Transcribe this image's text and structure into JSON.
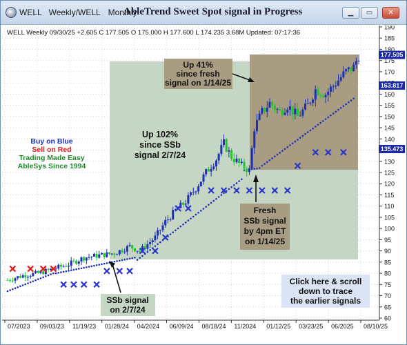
{
  "tabs": [
    "WELL",
    "Weekly/WELL",
    "Monthly"
  ],
  "window_title": "AbleTrend Sweet Spot signal in Progress",
  "buttons": {
    "minimize": "▁",
    "restore": "▭",
    "close": "✕"
  },
  "header_info": "WELL  Weekly 09/30/25 +2.605 C 177.505 O 175.000 H 177.600 L 174.235 3.68M Updated: 07:17:36",
  "legend": {
    "line1": "Buy on Blue",
    "line2": "Sell on Red",
    "line3": "Trading Made Easy",
    "line4": "AbleSys Since 1994"
  },
  "annotations": {
    "up102": [
      "Up 102%",
      "since SSb",
      "signal 2/7/24"
    ],
    "up41": [
      "Up 41%",
      "since fresh",
      "signal on 1/14/25"
    ],
    "fresh": [
      "Fresh",
      "SSb signal",
      "by 4pm ET",
      "on 1/14/25"
    ],
    "ssb": [
      "SSb signal",
      "on 2/7/24"
    ],
    "click": [
      "Click here & scroll",
      "down to trace",
      "the earlier signals"
    ]
  },
  "price_tags": {
    "last": "177.505",
    "stop1": "163.817",
    "stop2": "135.473"
  },
  "colors": {
    "up_bar": "#1d2fb5",
    "down_bar": "#21c42a",
    "sell_x": "#e21b1b",
    "buy_x": "#2a36c8",
    "stop_dot": "#1d2fb5",
    "tag_bg": "#1b29a8",
    "box1": "#c6d6c4",
    "box2": "#a89d82"
  },
  "chart_data": {
    "type": "candlestick",
    "title": "AbleTrend Sweet Spot signal in Progress",
    "ylim": [
      60,
      190
    ],
    "y_ticks": [
      60,
      65,
      70,
      75,
      80,
      85,
      90,
      95,
      100,
      105,
      110,
      115,
      120,
      125,
      130,
      135,
      140,
      145,
      150,
      155,
      160,
      165,
      170,
      175,
      180,
      185,
      190
    ],
    "x_ticks": [
      "07/2023",
      "09/03/23",
      "11/19/23",
      "01/28/24",
      "04/2024",
      "06/09/24",
      "08/18/24",
      "11/2024",
      "01/12/25",
      "03/23/25",
      "06/2025",
      "08/10/25"
    ],
    "anchor_closes": [
      [
        0,
        77
      ],
      [
        6,
        79
      ],
      [
        12,
        80
      ],
      [
        18,
        82
      ],
      [
        24,
        84
      ],
      [
        30,
        87
      ],
      [
        36,
        88
      ],
      [
        42,
        89
      ],
      [
        48,
        92
      ],
      [
        52,
        90
      ],
      [
        58,
        96
      ],
      [
        62,
        103
      ],
      [
        66,
        108
      ],
      [
        70,
        112
      ],
      [
        74,
        118
      ],
      [
        78,
        125
      ],
      [
        82,
        131
      ],
      [
        85,
        138
      ],
      [
        88,
        132
      ],
      [
        92,
        128
      ],
      [
        95,
        126
      ],
      [
        97,
        145
      ],
      [
        100,
        152
      ],
      [
        103,
        156
      ],
      [
        107,
        152
      ],
      [
        110,
        155
      ],
      [
        114,
        150
      ],
      [
        118,
        155
      ],
      [
        121,
        162
      ],
      [
        125,
        160
      ],
      [
        129,
        165
      ],
      [
        133,
        170
      ],
      [
        136,
        172
      ],
      [
        138,
        177.5
      ]
    ],
    "sell_signals": [
      [
        2,
        82
      ],
      [
        9,
        82
      ],
      [
        14,
        82
      ],
      [
        18,
        82
      ]
    ],
    "buy_signals": [
      [
        22,
        75
      ],
      [
        26,
        75
      ],
      [
        30,
        75
      ],
      [
        35,
        75
      ],
      [
        39,
        81
      ],
      [
        44,
        81
      ],
      [
        48,
        81
      ],
      [
        53,
        90
      ],
      [
        58,
        90
      ],
      [
        62,
        96
      ],
      [
        67,
        109
      ],
      [
        71,
        109
      ],
      [
        80,
        117
      ],
      [
        85,
        117
      ],
      [
        90,
        117
      ],
      [
        95,
        117
      ],
      [
        100,
        117
      ],
      [
        105,
        117
      ],
      [
        110,
        117
      ],
      [
        114,
        128
      ],
      [
        121,
        134
      ],
      [
        126,
        134
      ],
      [
        132,
        134
      ]
    ],
    "stop_segments": [
      [
        0,
        18,
        72,
        80
      ],
      [
        19,
        50,
        80,
        87
      ],
      [
        51,
        92,
        86,
        122
      ],
      [
        93,
        99,
        126,
        127
      ],
      [
        100,
        136,
        128,
        158
      ]
    ]
  }
}
